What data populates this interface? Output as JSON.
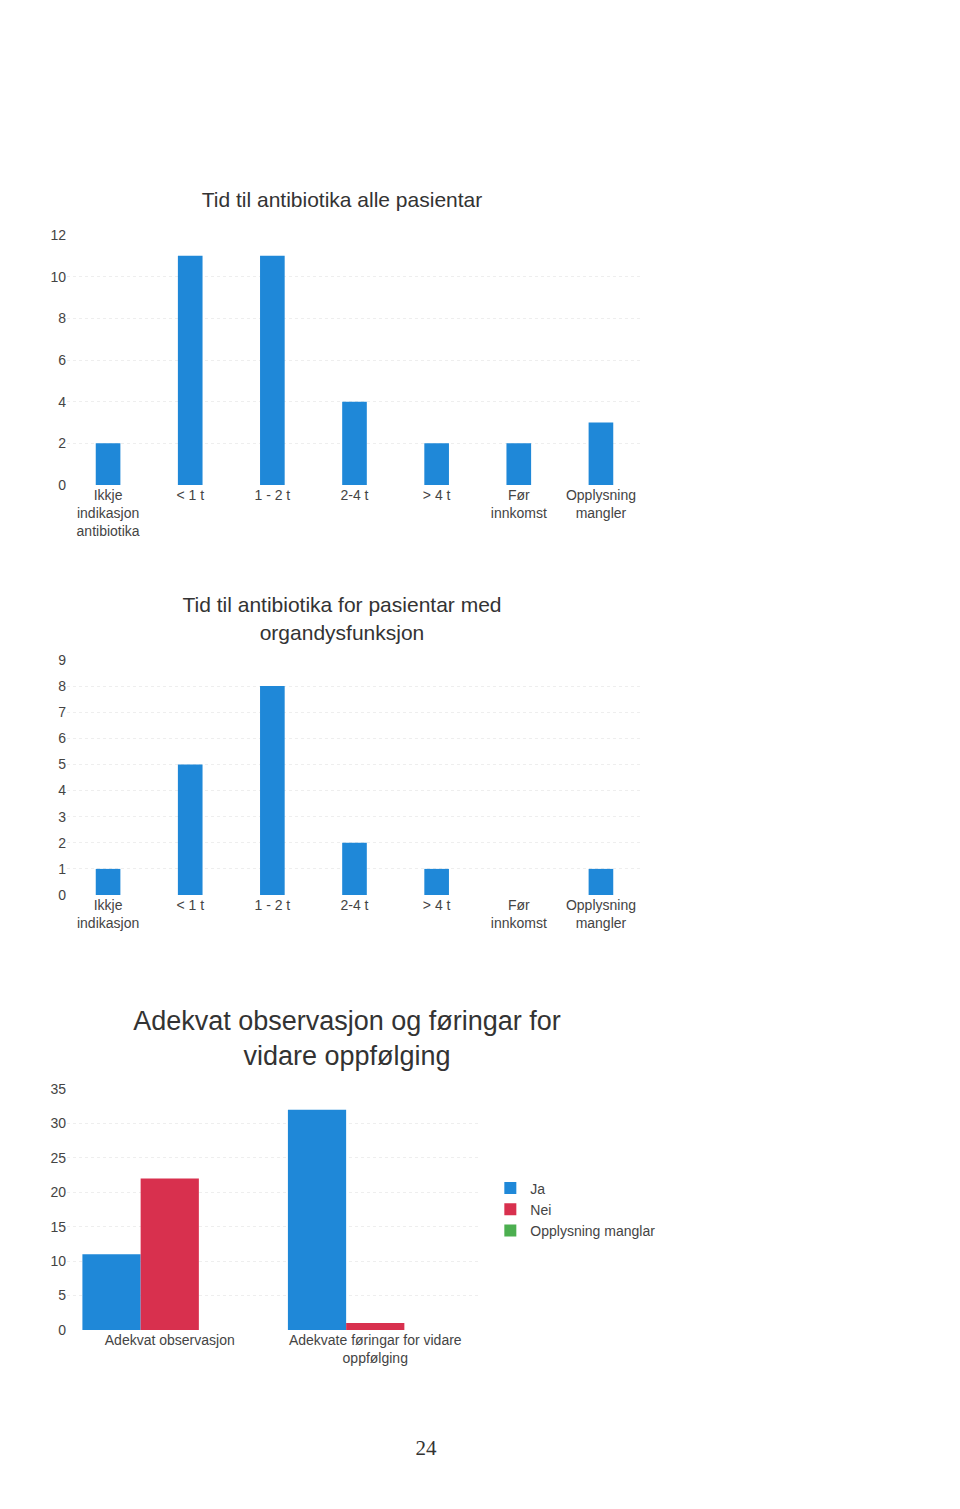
{
  "chart_data": [
    {
      "type": "bar",
      "title": "Tid til antibiotika alle pasientar",
      "categories": [
        "Ikkje indikasjon antibiotika",
        "< 1 t",
        "1 - 2 t",
        "2-4 t",
        "> 4 t",
        "Før innkomst",
        "Opplysning mangler"
      ],
      "values": [
        2,
        11,
        11,
        4,
        2,
        2,
        3
      ],
      "color": "#1f88d8",
      "ylim": [
        0,
        12
      ],
      "yticks": [
        0,
        2,
        4,
        6,
        8,
        10,
        12
      ],
      "grid": true
    },
    {
      "type": "bar",
      "title": "Tid til antibiotika for pasientar med organdysfunksjon",
      "categories": [
        "Ikkje indikasjon",
        "< 1 t",
        "1 - 2 t",
        "2-4 t",
        "> 4 t",
        "Før innkomst",
        "Opplysning mangler"
      ],
      "values": [
        1,
        5,
        8,
        2,
        1,
        0,
        1
      ],
      "color": "#1f88d8",
      "ylim": [
        0,
        9
      ],
      "yticks": [
        0,
        1,
        2,
        3,
        4,
        5,
        6,
        7,
        8,
        9
      ],
      "grid": true
    },
    {
      "type": "bar",
      "title": "Adekvat observasjon og føringar for vidare oppfølging",
      "categories": [
        "Adekvat observasjon",
        "Adekvate føringar for vidare oppfølging"
      ],
      "series": [
        {
          "name": "Ja",
          "color": "#1f88d8",
          "values": [
            11,
            32
          ]
        },
        {
          "name": "Nei",
          "color": "#d8304e",
          "values": [
            22,
            1
          ]
        },
        {
          "name": "Opplysning manglar",
          "color": "#4caf50",
          "values": [
            0,
            0
          ]
        }
      ],
      "ylim": [
        0,
        35
      ],
      "yticks": [
        0,
        5,
        10,
        15,
        20,
        25,
        30,
        35
      ],
      "grid": true,
      "legend": "right"
    }
  ],
  "page_number": "24"
}
